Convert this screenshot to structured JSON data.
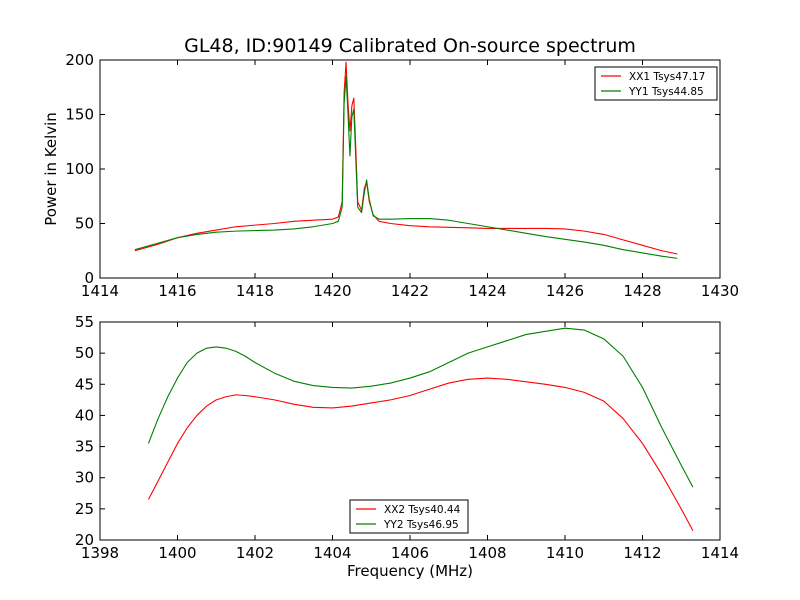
{
  "chart_data": [
    {
      "type": "line",
      "title": "GL48, ID:90149 Calibrated On-source spectrum",
      "xlabel": "",
      "ylabel": "Power in Kelvin",
      "xlim": [
        1414,
        1430
      ],
      "ylim": [
        0,
        200
      ],
      "xticks": [
        "1414",
        "1416",
        "1418",
        "1420",
        "1422",
        "1424",
        "1426",
        "1428",
        "1430"
      ],
      "yticks": [
        "0",
        "50",
        "100",
        "150",
        "200"
      ],
      "legend": "top-right",
      "grid": false,
      "series": [
        {
          "name": "XX1 Tsys47.17",
          "color": "#ff0000",
          "x": [
            1414.9,
            1415.5,
            1416.0,
            1416.5,
            1417.0,
            1417.5,
            1418.0,
            1418.5,
            1419.0,
            1419.5,
            1420.0,
            1420.15,
            1420.25,
            1420.3,
            1420.35,
            1420.4,
            1420.45,
            1420.5,
            1420.55,
            1420.6,
            1420.65,
            1420.75,
            1420.82,
            1420.88,
            1420.95,
            1421.05,
            1421.2,
            1421.5,
            1422.0,
            1422.5,
            1423.0,
            1423.5,
            1424.0,
            1424.5,
            1425.0,
            1425.5,
            1426.0,
            1426.5,
            1427.0,
            1427.5,
            1428.0,
            1428.5,
            1428.9
          ],
          "y": [
            25,
            31,
            37,
            41,
            44,
            47,
            48.5,
            50,
            52,
            53,
            54,
            56,
            70,
            170,
            198,
            160,
            135,
            158,
            165,
            120,
            70,
            62,
            82,
            88,
            70,
            58,
            52,
            50,
            48,
            47,
            46.5,
            46,
            45.5,
            45.5,
            45.5,
            45.5,
            45,
            43,
            40,
            35,
            30,
            25,
            22
          ]
        },
        {
          "name": "YY1 Tsys44.85",
          "color": "#008000",
          "x": [
            1414.9,
            1415.5,
            1416.0,
            1416.5,
            1417.0,
            1417.5,
            1418.0,
            1418.5,
            1419.0,
            1419.5,
            1420.0,
            1420.15,
            1420.25,
            1420.3,
            1420.35,
            1420.4,
            1420.45,
            1420.5,
            1420.55,
            1420.6,
            1420.65,
            1420.75,
            1420.82,
            1420.88,
            1420.95,
            1421.05,
            1421.2,
            1421.5,
            1422.0,
            1422.5,
            1423.0,
            1423.5,
            1424.0,
            1424.5,
            1425.0,
            1425.5,
            1426.0,
            1426.5,
            1427.0,
            1427.5,
            1428.0,
            1428.5,
            1428.9
          ],
          "y": [
            26,
            32,
            37,
            40,
            42,
            43,
            43.5,
            44,
            45,
            47,
            50,
            52,
            65,
            160,
            185,
            150,
            112,
            148,
            155,
            110,
            65,
            60,
            78,
            90,
            72,
            57,
            54,
            54,
            54.5,
            54.5,
            53,
            50,
            47,
            44,
            41,
            38,
            35.5,
            33,
            30,
            26,
            23,
            20,
            18
          ]
        }
      ]
    },
    {
      "type": "line",
      "title": "",
      "xlabel": "Frequency (MHz)",
      "ylabel": "",
      "xlim": [
        1398,
        1414
      ],
      "ylim": [
        20,
        55
      ],
      "xticks": [
        "1398",
        "1400",
        "1402",
        "1404",
        "1406",
        "1408",
        "1410",
        "1412",
        "1414"
      ],
      "yticks": [
        "20",
        "25",
        "30",
        "35",
        "40",
        "45",
        "50",
        "55"
      ],
      "legend": "bottom-center",
      "grid": false,
      "series": [
        {
          "name": "XX2 Tsys40.44",
          "color": "#ff0000",
          "x": [
            1399.25,
            1399.5,
            1399.75,
            1400.0,
            1400.25,
            1400.5,
            1400.75,
            1401.0,
            1401.25,
            1401.5,
            1401.75,
            1402.0,
            1402.5,
            1403.0,
            1403.5,
            1404.0,
            1404.5,
            1405.0,
            1405.5,
            1406.0,
            1406.5,
            1407.0,
            1407.5,
            1408.0,
            1408.5,
            1409.0,
            1409.5,
            1410.0,
            1410.5,
            1411.0,
            1411.5,
            1412.0,
            1412.5,
            1413.0,
            1413.3
          ],
          "y": [
            26.5,
            29.5,
            32.5,
            35.5,
            38.0,
            40.0,
            41.5,
            42.5,
            43.0,
            43.3,
            43.2,
            43.0,
            42.5,
            41.8,
            41.3,
            41.2,
            41.5,
            42.0,
            42.5,
            43.2,
            44.2,
            45.2,
            45.8,
            46.0,
            45.8,
            45.4,
            45.0,
            44.5,
            43.7,
            42.3,
            39.5,
            35.5,
            30.5,
            25.0,
            21.5
          ]
        },
        {
          "name": "YY2 Tsys46.95",
          "color": "#008000",
          "x": [
            1399.25,
            1399.5,
            1399.75,
            1400.0,
            1400.25,
            1400.5,
            1400.75,
            1401.0,
            1401.25,
            1401.5,
            1401.75,
            1402.0,
            1402.5,
            1403.0,
            1403.5,
            1404.0,
            1404.5,
            1405.0,
            1405.5,
            1406.0,
            1406.5,
            1407.0,
            1407.5,
            1408.0,
            1408.5,
            1409.0,
            1409.5,
            1410.0,
            1410.5,
            1411.0,
            1411.5,
            1412.0,
            1412.5,
            1413.0,
            1413.3
          ],
          "y": [
            35.5,
            39.5,
            43.0,
            46.0,
            48.5,
            50.0,
            50.8,
            51.0,
            50.8,
            50.3,
            49.5,
            48.5,
            46.8,
            45.5,
            44.8,
            44.5,
            44.4,
            44.7,
            45.2,
            46.0,
            47.0,
            48.5,
            50.0,
            51.0,
            52.0,
            53.0,
            53.5,
            54.0,
            53.7,
            52.3,
            49.5,
            44.5,
            38.0,
            32.0,
            28.5
          ]
        }
      ]
    }
  ]
}
